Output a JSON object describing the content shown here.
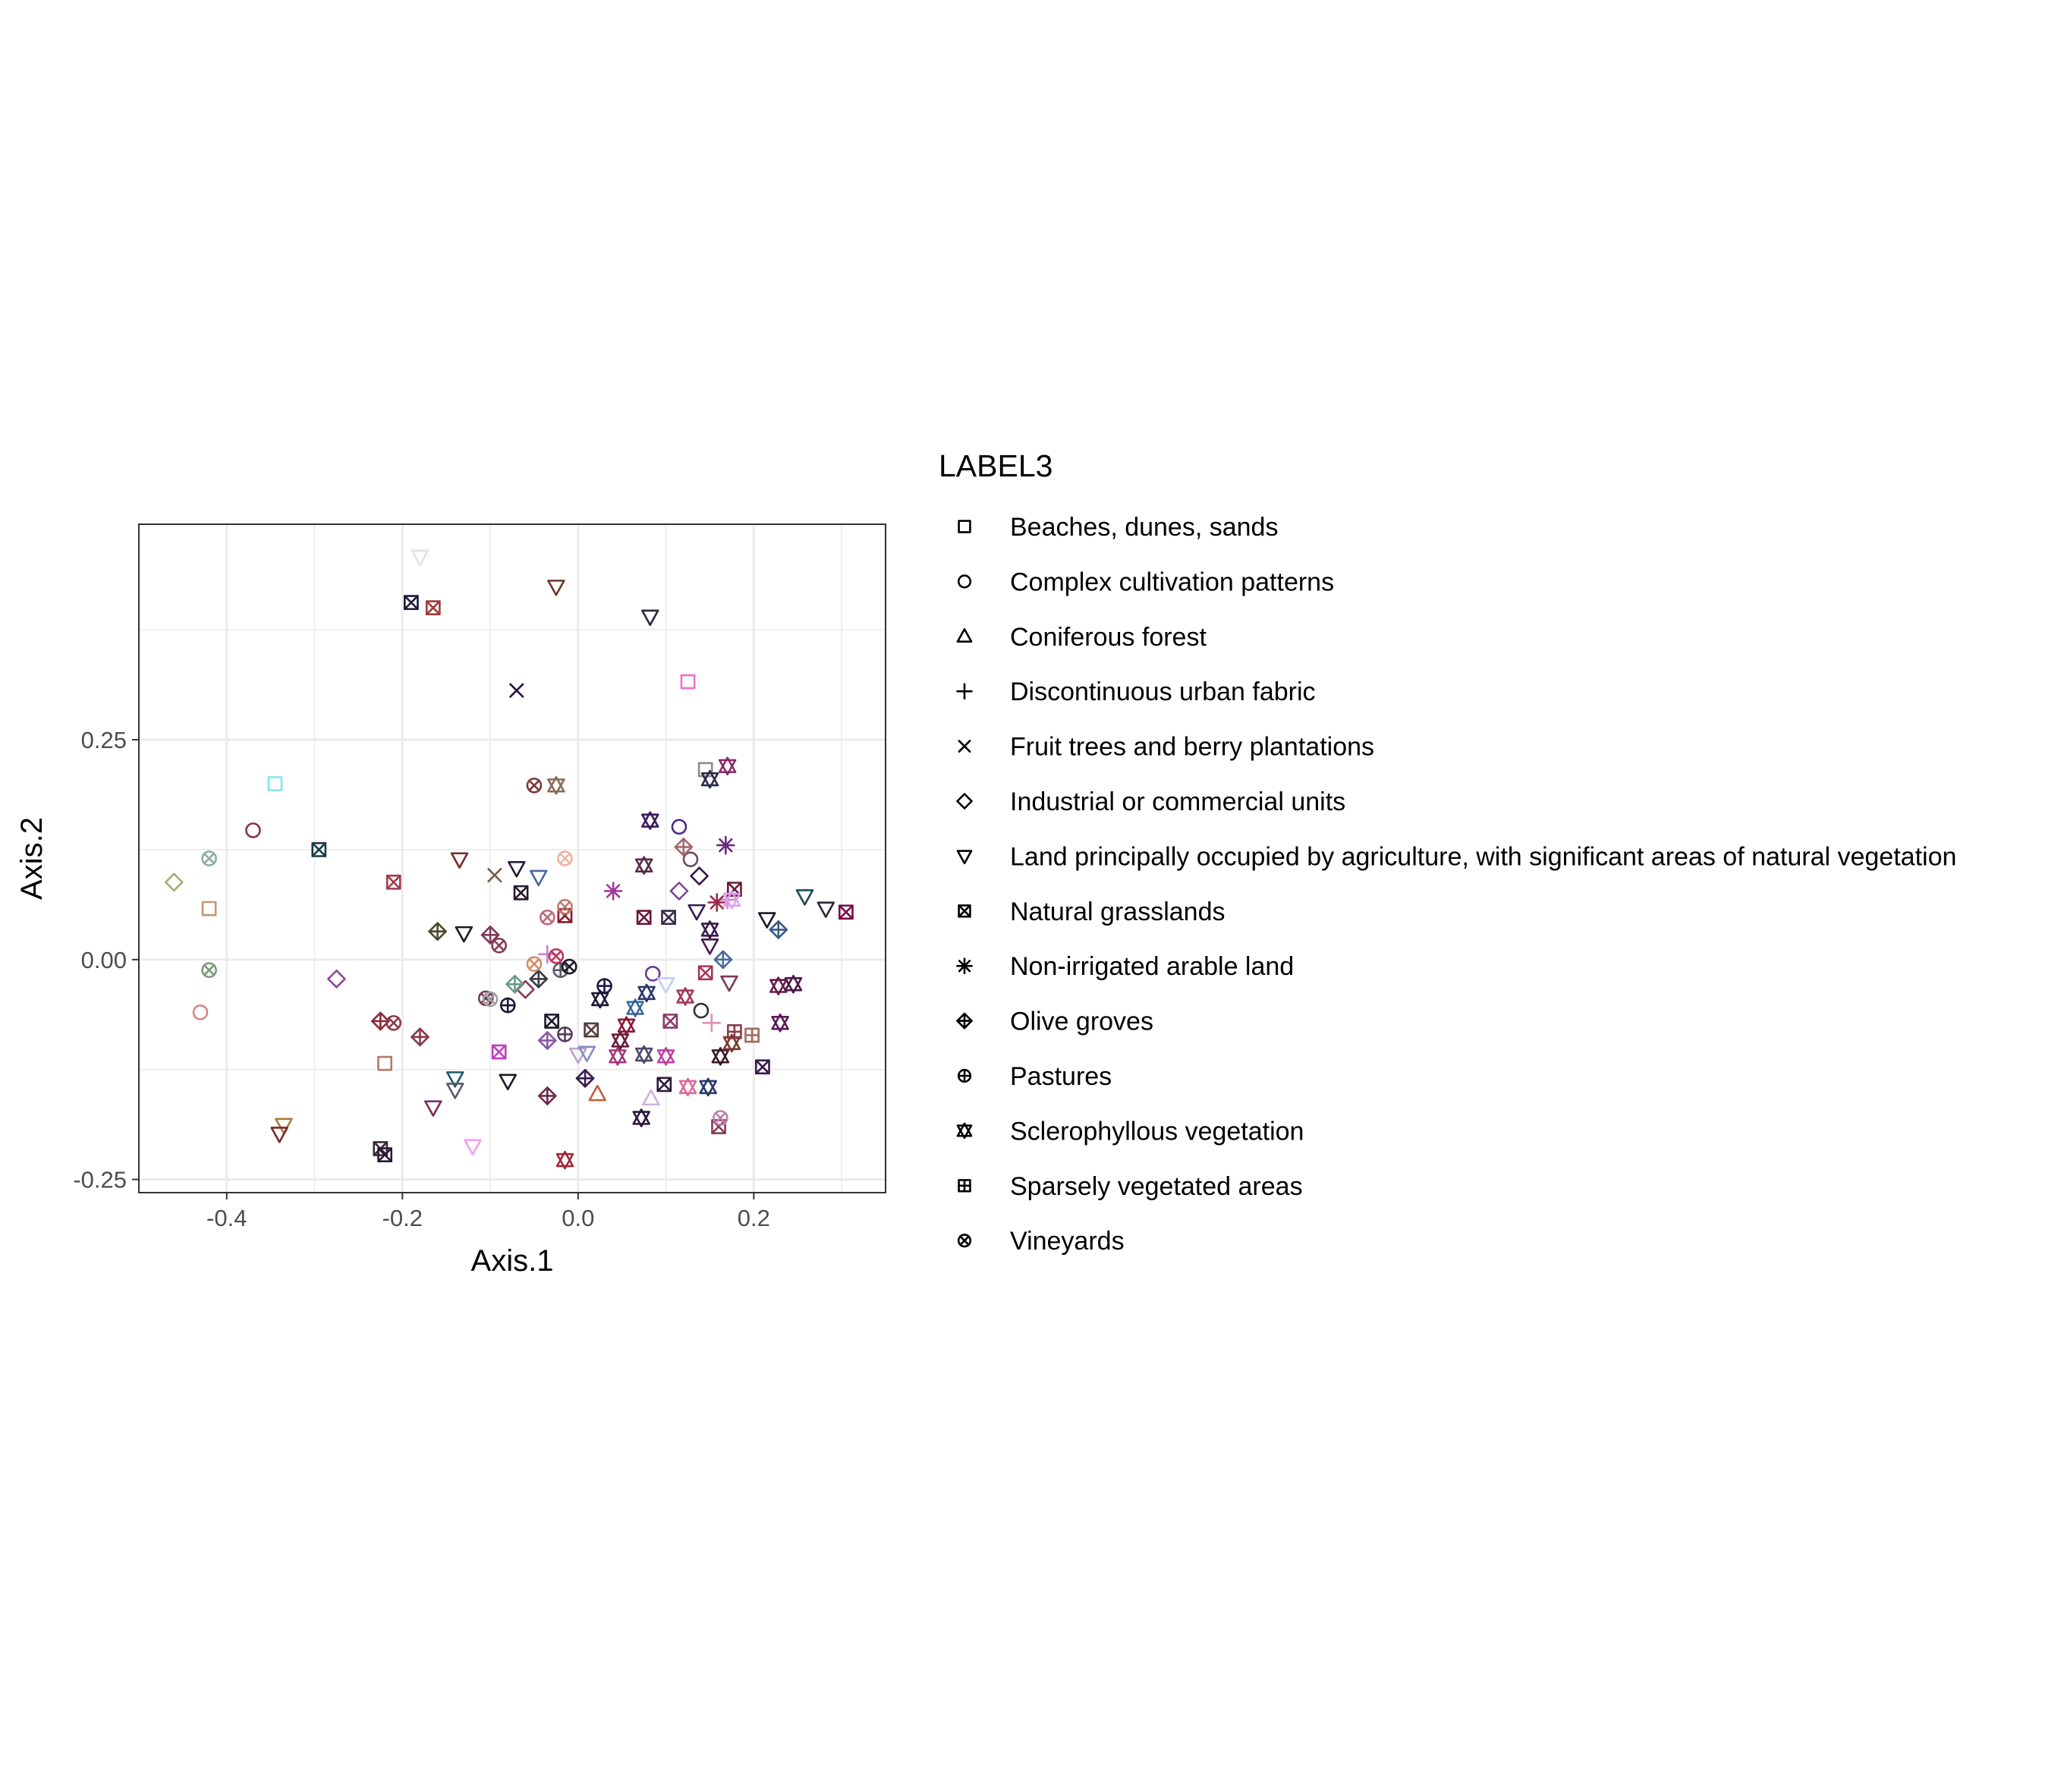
{
  "chart_data": {
    "type": "scatter",
    "title": "",
    "xlabel": "Axis.1",
    "ylabel": "Axis.2",
    "xlim": [
      -0.5,
      0.35
    ],
    "ylim": [
      -0.265,
      0.495
    ],
    "x_ticks": [
      -0.4,
      -0.2,
      0.0,
      0.2
    ],
    "x_tick_labels": [
      "-0.4",
      "-0.2",
      "0.0",
      "0.2"
    ],
    "y_ticks": [
      -0.25,
      0.0,
      0.25
    ],
    "y_tick_labels": [
      "-0.25",
      "0.00",
      "0.25"
    ],
    "grid": true,
    "legend": {
      "title": "LABEL3",
      "position": "right",
      "entries": [
        {
          "label": "Beaches, dunes, sands",
          "shape": "square"
        },
        {
          "label": "Complex cultivation patterns",
          "shape": "circle"
        },
        {
          "label": "Coniferous forest",
          "shape": "triangle"
        },
        {
          "label": "Discontinuous urban fabric",
          "shape": "plus"
        },
        {
          "label": "Fruit trees and berry plantations",
          "shape": "cross"
        },
        {
          "label": "Industrial or commercial units",
          "shape": "diamond"
        },
        {
          "label": "Land principally occupied by agriculture, with significant areas of natural vegetation",
          "shape": "triangle-down"
        },
        {
          "label": "Natural grasslands",
          "shape": "square-cross"
        },
        {
          "label": "Non-irrigated arable land",
          "shape": "asterisk"
        },
        {
          "label": "Olive groves",
          "shape": "diamond-plus"
        },
        {
          "label": "Pastures",
          "shape": "circle-plus"
        },
        {
          "label": "Sclerophyllous vegetation",
          "shape": "star-of-david"
        },
        {
          "label": "Sparsely vegetated areas",
          "shape": "square-plus"
        },
        {
          "label": "Vineyards",
          "shape": "circle-cross"
        }
      ]
    },
    "series": [
      {
        "name": "Beaches, dunes, sands",
        "points": [
          {
            "x": -0.345,
            "y": 0.2,
            "color": "#7fe7f2"
          },
          {
            "x": -0.42,
            "y": 0.058,
            "color": "#c8966e"
          },
          {
            "x": -0.22,
            "y": -0.118,
            "color": "#b07a6a"
          },
          {
            "x": 0.125,
            "y": 0.316,
            "color": "#ee6fd6"
          },
          {
            "x": 0.145,
            "y": 0.216,
            "color": "#8a8a8a"
          }
        ]
      },
      {
        "name": "Complex cultivation patterns",
        "points": [
          {
            "x": -0.37,
            "y": 0.147,
            "color": "#8a3050"
          },
          {
            "x": -0.43,
            "y": -0.06,
            "color": "#d4868a"
          },
          {
            "x": 0.115,
            "y": 0.151,
            "color": "#4a2a8a"
          },
          {
            "x": 0.128,
            "y": 0.114,
            "color": "#6a4a6a"
          },
          {
            "x": 0.085,
            "y": -0.016,
            "color": "#6a3a9a"
          },
          {
            "x": 0.14,
            "y": -0.058,
            "color": "#333333"
          }
        ]
      },
      {
        "name": "Coniferous forest",
        "points": [
          {
            "x": 0.022,
            "y": -0.153,
            "color": "#c06040"
          },
          {
            "x": 0.083,
            "y": -0.158,
            "color": "#d0b0e0"
          }
        ]
      },
      {
        "name": "Discontinuous urban fabric",
        "points": [
          {
            "x": -0.035,
            "y": 0.006,
            "color": "#c080d0"
          },
          {
            "x": 0.152,
            "y": -0.072,
            "color": "#e090b0"
          },
          {
            "x": 0.17,
            "y": 0.068,
            "color": "#d080c0"
          }
        ]
      },
      {
        "name": "Fruit trees and berry plantations",
        "points": [
          {
            "x": -0.07,
            "y": 0.306,
            "color": "#2a1040"
          },
          {
            "x": -0.095,
            "y": 0.096,
            "color": "#7a5a4a"
          }
        ]
      },
      {
        "name": "Industrial or commercial units",
        "points": [
          {
            "x": -0.46,
            "y": 0.088,
            "color": "#a0b070"
          },
          {
            "x": -0.275,
            "y": -0.022,
            "color": "#8a4a9a"
          },
          {
            "x": 0.115,
            "y": 0.078,
            "color": "#7a4aa0"
          },
          {
            "x": 0.138,
            "y": 0.095,
            "color": "#3a1a4a"
          },
          {
            "x": -0.06,
            "y": -0.034,
            "color": "#8a3a4a"
          }
        ]
      },
      {
        "name": "Land principally occupied by agriculture, with significant areas of natural vegetation",
        "points": [
          {
            "x": -0.18,
            "y": 0.458,
            "color": "#e0e0ec"
          },
          {
            "x": -0.025,
            "y": 0.424,
            "color": "#6a3a2a"
          },
          {
            "x": 0.082,
            "y": 0.39,
            "color": "#2a2a3a"
          },
          {
            "x": -0.135,
            "y": 0.114,
            "color": "#7a2a2a"
          },
          {
            "x": -0.07,
            "y": 0.104,
            "color": "#2a1a3a"
          },
          {
            "x": -0.045,
            "y": 0.094,
            "color": "#4a6a9a"
          },
          {
            "x": -0.13,
            "y": 0.03,
            "color": "#1a1a2a"
          },
          {
            "x": 0.135,
            "y": 0.055,
            "color": "#3a1a5a"
          },
          {
            "x": 0.15,
            "y": 0.016,
            "color": "#4a1a4a"
          },
          {
            "x": 0.172,
            "y": -0.026,
            "color": "#7a3a5a"
          },
          {
            "x": 0.215,
            "y": 0.046,
            "color": "#1a1a2a"
          },
          {
            "x": 0.258,
            "y": 0.072,
            "color": "#1a4a5a"
          },
          {
            "x": 0.282,
            "y": 0.058,
            "color": "#2a2a3a"
          },
          {
            "x": -0.335,
            "y": -0.188,
            "color": "#b07a3a"
          },
          {
            "x": -0.34,
            "y": -0.198,
            "color": "#7a2a2a"
          },
          {
            "x": -0.14,
            "y": -0.135,
            "color": "#1a5a6a"
          },
          {
            "x": -0.14,
            "y": -0.148,
            "color": "#5a5a6a"
          },
          {
            "x": -0.165,
            "y": -0.168,
            "color": "#7a2a5a"
          },
          {
            "x": -0.08,
            "y": -0.138,
            "color": "#1a1a2a"
          },
          {
            "x": -0.12,
            "y": -0.212,
            "color": "#f0a0f0"
          },
          {
            "x": 0.0,
            "y": -0.108,
            "color": "#c0a0d0"
          },
          {
            "x": 0.01,
            "y": -0.106,
            "color": "#8090c0"
          },
          {
            "x": 0.1,
            "y": -0.028,
            "color": "#c0d0f0"
          }
        ]
      },
      {
        "name": "Natural grasslands",
        "points": [
          {
            "x": -0.19,
            "y": 0.406,
            "color": "#1a1a3a"
          },
          {
            "x": -0.165,
            "y": 0.4,
            "color": "#a03a3a"
          },
          {
            "x": -0.295,
            "y": 0.125,
            "color": "#1a3a4a"
          },
          {
            "x": -0.21,
            "y": 0.088,
            "color": "#a03a4a"
          },
          {
            "x": -0.065,
            "y": 0.076,
            "color": "#2a1a2a"
          },
          {
            "x": -0.015,
            "y": 0.05,
            "color": "#8a1a2a"
          },
          {
            "x": 0.075,
            "y": 0.048,
            "color": "#6a1a3a"
          },
          {
            "x": 0.103,
            "y": 0.048,
            "color": "#3a2a4a"
          },
          {
            "x": 0.178,
            "y": 0.08,
            "color": "#6a1a3a"
          },
          {
            "x": 0.305,
            "y": 0.054,
            "color": "#7a0a4a"
          },
          {
            "x": -0.03,
            "y": -0.07,
            "color": "#1a1a2a"
          },
          {
            "x": 0.015,
            "y": -0.08,
            "color": "#5a3a3a"
          },
          {
            "x": 0.105,
            "y": -0.07,
            "color": "#8a3a6a"
          },
          {
            "x": 0.145,
            "y": -0.015,
            "color": "#a03a5a"
          },
          {
            "x": -0.09,
            "y": -0.105,
            "color": "#c040c0"
          },
          {
            "x": 0.21,
            "y": -0.122,
            "color": "#3a1a4a"
          },
          {
            "x": 0.16,
            "y": -0.19,
            "color": "#8a3a5a"
          },
          {
            "x": 0.098,
            "y": -0.142,
            "color": "#2a1a3a"
          },
          {
            "x": -0.225,
            "y": -0.215,
            "color": "#3a2a2a"
          },
          {
            "x": -0.22,
            "y": -0.222,
            "color": "#2a1a3a"
          }
        ]
      },
      {
        "name": "Non-irrigated arable land",
        "points": [
          {
            "x": 0.04,
            "y": 0.078,
            "color": "#a03a9a"
          },
          {
            "x": 0.168,
            "y": 0.13,
            "color": "#6a2a7a"
          },
          {
            "x": 0.158,
            "y": 0.065,
            "color": "#a02a4a"
          }
        ]
      },
      {
        "name": "Olive groves",
        "points": [
          {
            "x": -0.16,
            "y": 0.032,
            "color": "#4a4a2a"
          },
          {
            "x": -0.1,
            "y": 0.028,
            "color": "#7a3a5a"
          },
          {
            "x": -0.072,
            "y": -0.028,
            "color": "#6a9a8a"
          },
          {
            "x": 0.12,
            "y": 0.128,
            "color": "#a06a6a"
          },
          {
            "x": 0.165,
            "y": 0.0,
            "color": "#4a6a9a"
          },
          {
            "x": 0.228,
            "y": 0.034,
            "color": "#3a5a8a"
          },
          {
            "x": -0.225,
            "y": -0.07,
            "color": "#8a2a3a"
          },
          {
            "x": -0.18,
            "y": -0.088,
            "color": "#8a3a4a"
          },
          {
            "x": -0.035,
            "y": -0.092,
            "color": "#8a5aa0"
          },
          {
            "x": -0.035,
            "y": -0.155,
            "color": "#6a2a4a"
          },
          {
            "x": 0.008,
            "y": -0.135,
            "color": "#3a1a4a"
          },
          {
            "x": -0.045,
            "y": -0.022,
            "color": "#3a3a4a"
          }
        ]
      },
      {
        "name": "Pastures",
        "points": [
          {
            "x": -0.08,
            "y": -0.052,
            "color": "#1a1a3a"
          },
          {
            "x": -0.015,
            "y": -0.085,
            "color": "#5a3a5a"
          },
          {
            "x": 0.03,
            "y": -0.03,
            "color": "#1a1a4a"
          },
          {
            "x": -0.02,
            "y": -0.012,
            "color": "#5a5a6a"
          }
        ]
      },
      {
        "name": "Sclerophyllous vegetation",
        "points": [
          {
            "x": -0.025,
            "y": 0.198,
            "color": "#8a6a5a"
          },
          {
            "x": 0.15,
            "y": 0.205,
            "color": "#2a2a4a"
          },
          {
            "x": 0.17,
            "y": 0.22,
            "color": "#8a2a6a"
          },
          {
            "x": 0.082,
            "y": 0.158,
            "color": "#3a1a5a"
          },
          {
            "x": 0.075,
            "y": 0.107,
            "color": "#5a2a4a"
          },
          {
            "x": 0.15,
            "y": 0.034,
            "color": "#3a1a4a"
          },
          {
            "x": 0.175,
            "y": 0.068,
            "color": "#e0a0f0"
          },
          {
            "x": 0.025,
            "y": -0.045,
            "color": "#1a1a3a"
          },
          {
            "x": 0.078,
            "y": -0.038,
            "color": "#2a3a6a"
          },
          {
            "x": 0.065,
            "y": -0.055,
            "color": "#3a6a9a"
          },
          {
            "x": 0.055,
            "y": -0.075,
            "color": "#8a1a3a"
          },
          {
            "x": 0.048,
            "y": -0.092,
            "color": "#6a1a3a"
          },
          {
            "x": 0.045,
            "y": -0.11,
            "color": "#a03a7a"
          },
          {
            "x": 0.075,
            "y": -0.108,
            "color": "#4a4a6a"
          },
          {
            "x": 0.1,
            "y": -0.11,
            "color": "#c040a0"
          },
          {
            "x": 0.122,
            "y": -0.042,
            "color": "#a03a5a"
          },
          {
            "x": 0.162,
            "y": -0.11,
            "color": "#3a1a2a"
          },
          {
            "x": 0.175,
            "y": -0.095,
            "color": "#7a3a2a"
          },
          {
            "x": 0.228,
            "y": -0.03,
            "color": "#6a1a4a"
          },
          {
            "x": 0.245,
            "y": -0.028,
            "color": "#4a1a4a"
          },
          {
            "x": 0.23,
            "y": -0.072,
            "color": "#5a1a5a"
          },
          {
            "x": 0.125,
            "y": -0.145,
            "color": "#e06a9a"
          },
          {
            "x": 0.148,
            "y": -0.145,
            "color": "#2a3a6a"
          },
          {
            "x": 0.072,
            "y": -0.18,
            "color": "#2a1a3a"
          },
          {
            "x": -0.015,
            "y": -0.228,
            "color": "#a02a3a"
          }
        ]
      },
      {
        "name": "Sparsely vegetated areas",
        "points": [
          {
            "x": 0.178,
            "y": -0.082,
            "color": "#8a3a4a"
          },
          {
            "x": 0.198,
            "y": -0.086,
            "color": "#a06a5a"
          }
        ]
      },
      {
        "name": "Vineyards",
        "points": [
          {
            "x": -0.05,
            "y": 0.198,
            "color": "#7a3a3a"
          },
          {
            "x": -0.42,
            "y": 0.115,
            "color": "#8ab0a0"
          },
          {
            "x": -0.42,
            "y": -0.012,
            "color": "#7a9a7a"
          },
          {
            "x": -0.015,
            "y": 0.115,
            "color": "#f0b0a0"
          },
          {
            "x": -0.015,
            "y": 0.06,
            "color": "#c07a6a"
          },
          {
            "x": -0.035,
            "y": 0.048,
            "color": "#c06a7a"
          },
          {
            "x": -0.09,
            "y": 0.016,
            "color": "#8a3a4a"
          },
          {
            "x": -0.025,
            "y": 0.004,
            "color": "#c03a5a"
          },
          {
            "x": -0.05,
            "y": -0.005,
            "color": "#d0906a"
          },
          {
            "x": -0.105,
            "y": -0.044,
            "color": "#7a3a5a"
          },
          {
            "x": -0.21,
            "y": -0.072,
            "color": "#8a3a4a"
          },
          {
            "x": -0.01,
            "y": -0.008,
            "color": "#1a1a2a"
          },
          {
            "x": -0.1,
            "y": -0.045,
            "color": "#a0a0a0"
          },
          {
            "x": 0.162,
            "y": -0.18,
            "color": "#c080b0"
          }
        ]
      }
    ]
  }
}
